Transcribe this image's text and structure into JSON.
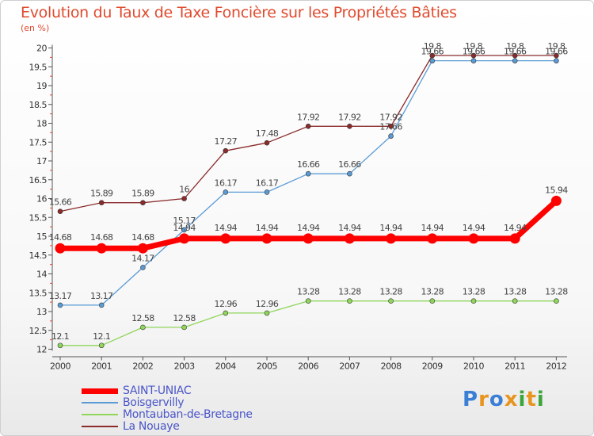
{
  "title": "Evolution du Taux de Taxe Foncière sur les Propriétés Bâties",
  "unit_label": "(en %)",
  "brand": {
    "text": "Proxiti",
    "colors": [
      "#3a7fd5",
      "#e8951f",
      "#3a7fd5",
      "#e8951f",
      "#3aa53a",
      "#e8951f",
      "#3aa53a"
    ]
  },
  "chart_data": {
    "type": "line",
    "x": [
      "2000",
      "2001",
      "2002",
      "2003",
      "2004",
      "2005",
      "2006",
      "2007",
      "2008",
      "2009",
      "2010",
      "2011",
      "2012"
    ],
    "ylim": [
      12,
      20
    ],
    "yticks": [
      "12",
      "12.5",
      "13",
      "13.5",
      "14",
      "14.5",
      "15",
      "15.5",
      "16",
      "16.5",
      "17",
      "17.5",
      "18",
      "18.5",
      "19",
      "19.5",
      "20"
    ],
    "grid": false,
    "legend_position": "bottom-left",
    "series": [
      {
        "name": "SAINT-UNIAC",
        "color": "#ff0000",
        "values": [
          14.68,
          14.68,
          14.68,
          14.94,
          14.94,
          14.94,
          14.94,
          14.94,
          14.94,
          14.94,
          14.94,
          14.94,
          15.94
        ],
        "labels": [
          "14.68",
          "14.68",
          "14.68",
          "14.94",
          "14.94",
          "14.94",
          "14.94",
          "14.94",
          "14.94",
          "14.94",
          "14.94",
          "14.94",
          "15.94"
        ]
      },
      {
        "name": "Boisgervilly",
        "color": "#5b9bd5",
        "values": [
          13.17,
          13.17,
          14.17,
          15.17,
          16.17,
          16.17,
          16.66,
          16.66,
          17.66,
          19.66,
          19.66,
          19.66,
          19.66
        ],
        "labels": [
          "13.17",
          "13.17",
          "14.17",
          "15.17",
          "16.17",
          "16.17",
          "16.66",
          "16.66",
          "17.66",
          "19.66",
          "19.66",
          "19.66",
          "19.66"
        ]
      },
      {
        "name": "Montauban-de-Bretagne",
        "color": "#8fd65a",
        "values": [
          12.1,
          12.1,
          12.58,
          12.58,
          12.96,
          12.96,
          13.28,
          13.28,
          13.28,
          13.28,
          13.28,
          13.28,
          13.28
        ],
        "labels": [
          "12.1",
          "12.1",
          "12.58",
          "12.58",
          "12.96",
          "12.96",
          "13.28",
          "13.28",
          "13.28",
          "13.28",
          "13.28",
          "13.28",
          "13.28"
        ]
      },
      {
        "name": "La Nouaye",
        "color": "#8b2b2b",
        "values": [
          15.66,
          15.89,
          15.89,
          16.0,
          17.27,
          17.48,
          17.92,
          17.92,
          17.92,
          19.8,
          19.8,
          19.8,
          19.8
        ],
        "labels": [
          "15.66",
          "15.89",
          "15.89",
          "16",
          "17.27",
          "17.48",
          "17.92",
          "17.92",
          "17.92",
          "19.8",
          "19.8",
          "19.8",
          "19.8"
        ]
      }
    ]
  }
}
